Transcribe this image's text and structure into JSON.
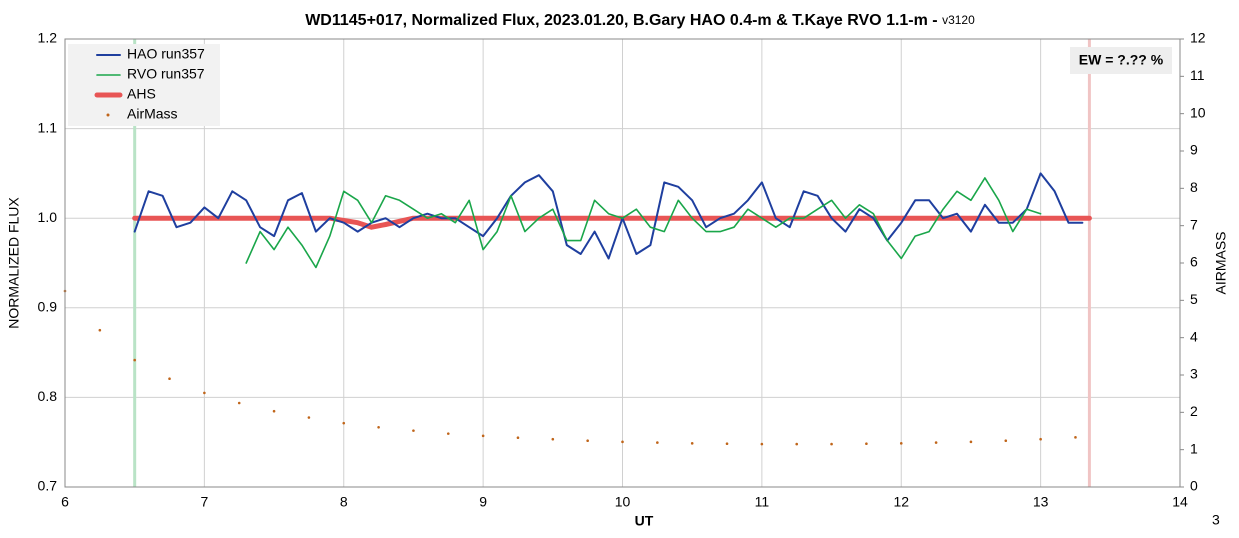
{
  "chart_data": {
    "type": "line",
    "title": "WD1145+017, Normalized Flux, 2023.01.20, B.Gary HAO 0.4-m & T.Kaye RVO 1.1-m - ",
    "version": "v3120",
    "xlabel": "UT",
    "ylabel": "NORMALIZED FLUX",
    "y2label": "AIRMASS",
    "annotation": "EW = ?.?? %",
    "page_number": "3",
    "xlim": [
      6,
      14
    ],
    "xticks": [
      6,
      7,
      8,
      9,
      10,
      11,
      12,
      13,
      14
    ],
    "ylim": [
      0.7,
      1.2
    ],
    "yticks": [
      0.7,
      0.8,
      0.9,
      {
        "value": 1,
        "label": "1.0"
      },
      1.1,
      1.2
    ],
    "y2lim": [
      0,
      12
    ],
    "y2ticks": [
      0,
      1,
      2,
      3,
      4,
      5,
      6,
      7,
      8,
      9,
      10,
      11,
      12
    ],
    "grid": true,
    "legend": "upper left",
    "vertical_lines": [
      {
        "x": 6.5,
        "color": "#b9e3c6"
      },
      {
        "x": 13.35,
        "color": "#f0c4c4"
      }
    ],
    "series": [
      {
        "name": "HAO run357",
        "color": "#1f3f9f",
        "style": "line",
        "width": 2,
        "x": [
          6.5,
          6.6,
          6.7,
          6.8,
          6.9,
          7.0,
          7.1,
          7.2,
          7.3,
          7.4,
          7.5,
          7.6,
          7.7,
          7.8,
          7.9,
          8.0,
          8.1,
          8.2,
          8.3,
          8.4,
          8.5,
          8.6,
          8.7,
          8.8,
          8.9,
          9.0,
          9.1,
          9.2,
          9.3,
          9.4,
          9.5,
          9.6,
          9.7,
          9.8,
          9.9,
          10.0,
          10.1,
          10.2,
          10.3,
          10.4,
          10.5,
          10.6,
          10.7,
          10.8,
          10.9,
          11.0,
          11.1,
          11.2,
          11.3,
          11.4,
          11.5,
          11.6,
          11.7,
          11.8,
          11.9,
          12.0,
          12.1,
          12.2,
          12.3,
          12.4,
          12.5,
          12.6,
          12.7,
          12.8,
          12.9,
          13.0,
          13.1,
          13.2,
          13.3
        ],
        "values": [
          0.985,
          1.03,
          1.025,
          0.99,
          0.995,
          1.012,
          1.0,
          1.03,
          1.02,
          0.99,
          0.98,
          1.02,
          1.028,
          0.985,
          1.0,
          0.995,
          0.985,
          0.995,
          1.0,
          0.99,
          1.0,
          1.005,
          1.0,
          1.0,
          0.99,
          0.98,
          1.0,
          1.025,
          1.04,
          1.048,
          1.03,
          0.97,
          0.96,
          0.985,
          0.955,
          1.0,
          0.96,
          0.97,
          1.04,
          1.035,
          1.02,
          0.99,
          1.0,
          1.005,
          1.02,
          1.04,
          1.0,
          0.99,
          1.03,
          1.025,
          1.0,
          0.985,
          1.01,
          1.0,
          0.975,
          0.995,
          1.02,
          1.02,
          1.0,
          1.005,
          0.985,
          1.015,
          0.995,
          0.995,
          1.01,
          1.05,
          1.03,
          0.995,
          0.995
        ]
      },
      {
        "name": "RVO run357",
        "color": "#1aa64a",
        "style": "line",
        "width": 1.6,
        "x": [
          7.3,
          7.4,
          7.5,
          7.6,
          7.7,
          7.8,
          7.9,
          8.0,
          8.1,
          8.2,
          8.3,
          8.4,
          8.5,
          8.6,
          8.7,
          8.8,
          8.9,
          9.0,
          9.1,
          9.2,
          9.3,
          9.4,
          9.5,
          9.6,
          9.7,
          9.8,
          9.9,
          10.0,
          10.1,
          10.2,
          10.3,
          10.4,
          10.5,
          10.6,
          10.7,
          10.8,
          10.9,
          11.0,
          11.1,
          11.2,
          11.3,
          11.4,
          11.5,
          11.6,
          11.7,
          11.8,
          11.9,
          12.0,
          12.1,
          12.2,
          12.3,
          12.4,
          12.5,
          12.6,
          12.7,
          12.8,
          12.9,
          13.0
        ],
        "values": [
          0.95,
          0.985,
          0.965,
          0.99,
          0.97,
          0.945,
          0.98,
          1.03,
          1.02,
          0.995,
          1.025,
          1.02,
          1.01,
          1.0,
          1.005,
          0.995,
          1.02,
          0.965,
          0.985,
          1.025,
          0.985,
          1.0,
          1.01,
          0.975,
          0.975,
          1.02,
          1.005,
          1.0,
          1.01,
          0.99,
          0.985,
          1.02,
          1.0,
          0.985,
          0.985,
          0.99,
          1.01,
          1.0,
          0.99,
          1.0,
          1.0,
          1.01,
          1.02,
          1.0,
          1.015,
          1.005,
          0.975,
          0.955,
          0.98,
          0.985,
          1.01,
          1.03,
          1.02,
          1.045,
          1.02,
          0.985,
          1.01,
          1.005
        ]
      },
      {
        "name": "AHS",
        "color": "#e85555",
        "style": "line",
        "width": 5,
        "x": [
          6.5,
          7.9,
          8.1,
          8.2,
          8.3,
          8.5,
          13.35
        ],
        "values": [
          1,
          1,
          0.995,
          0.99,
          0.993,
          1,
          1
        ]
      },
      {
        "name": "AirMass",
        "color": "#c0651a",
        "style": "dots",
        "axis": "y2",
        "x": [
          6.0,
          6.25,
          6.5,
          6.75,
          7.0,
          7.25,
          7.5,
          7.75,
          8.0,
          8.25,
          8.5,
          8.75,
          9.0,
          9.25,
          9.5,
          9.75,
          10.0,
          10.25,
          10.5,
          10.75,
          11.0,
          11.25,
          11.5,
          11.75,
          12.0,
          12.25,
          12.5,
          12.75,
          13.0,
          13.25
        ],
        "values": [
          5.25,
          4.2,
          3.4,
          2.9,
          2.52,
          2.25,
          2.03,
          1.86,
          1.71,
          1.6,
          1.51,
          1.43,
          1.37,
          1.32,
          1.28,
          1.24,
          1.21,
          1.19,
          1.17,
          1.16,
          1.15,
          1.15,
          1.15,
          1.16,
          1.17,
          1.19,
          1.21,
          1.24,
          1.28,
          1.33
        ]
      }
    ]
  }
}
